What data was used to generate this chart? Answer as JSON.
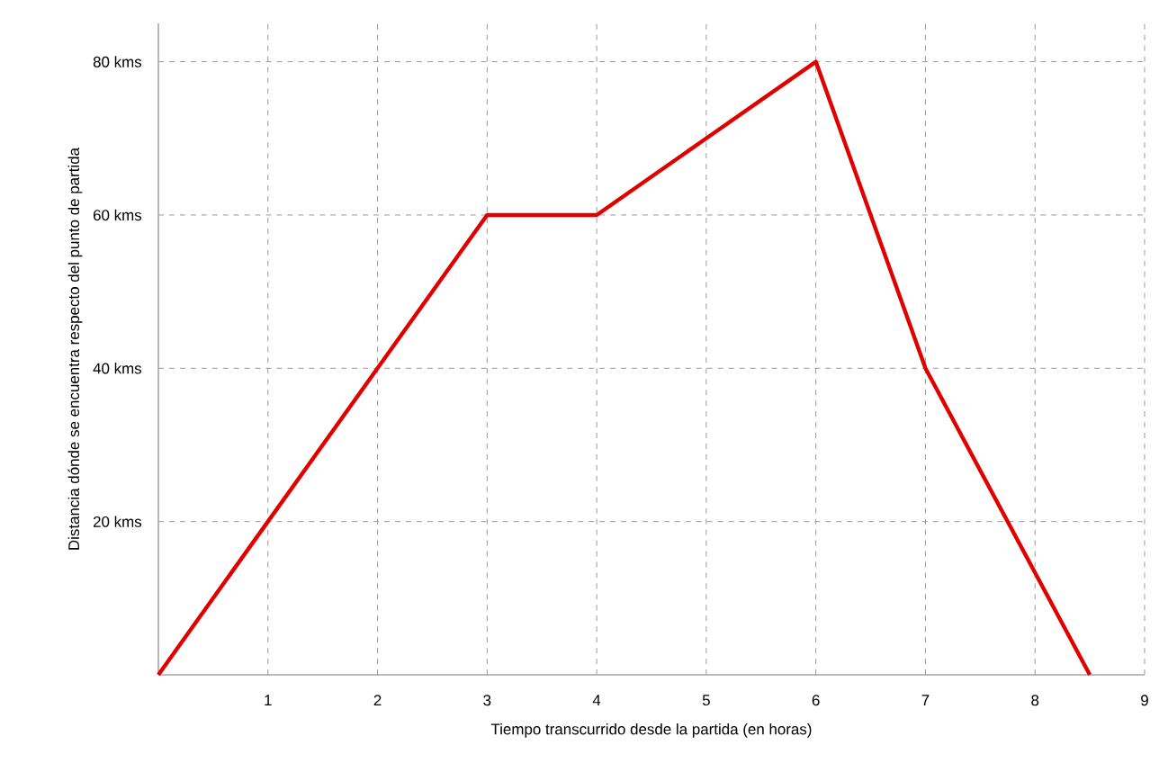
{
  "chart_data": {
    "type": "line",
    "xlabel": "Tiempo transcurrido desde la partida (en horas)",
    "ylabel": "Distancia dónde se encuentra respecto del punto de partida",
    "x": [
      0,
      1,
      2,
      3,
      4,
      5,
      6,
      7,
      8.5
    ],
    "values": [
      0,
      20,
      40,
      60,
      60,
      70,
      80,
      40,
      0
    ],
    "color": "#e00000",
    "xlim": [
      0,
      9
    ],
    "ylim": [
      0,
      85
    ],
    "xticks": [
      1,
      2,
      3,
      4,
      5,
      6,
      7,
      8,
      9
    ],
    "yticks": [
      {
        "value": 20,
        "label": "20 kms"
      },
      {
        "value": 40,
        "label": "40 kms"
      },
      {
        "value": 60,
        "label": "60 kms"
      },
      {
        "value": 80,
        "label": "80 kms"
      }
    ],
    "grid": true,
    "marker": "none",
    "line_style": "solid"
  }
}
